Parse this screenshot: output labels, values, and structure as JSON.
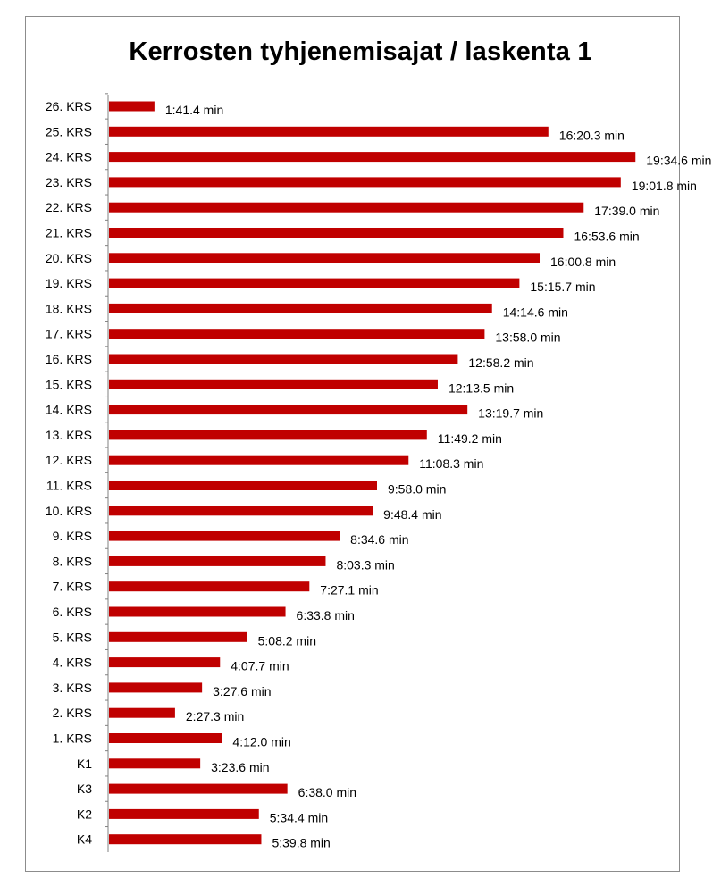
{
  "chart_data": {
    "type": "bar",
    "orientation": "horizontal",
    "title": "Kerrosten tyhjenemisajat / laskenta 1",
    "xlabel": "",
    "ylabel": "",
    "value_unit": "seconds",
    "xlim": [
      0,
      1200
    ],
    "grid": false,
    "legend": "none",
    "bar_color": "#c00000",
    "categories": [
      "26. KRS",
      "25. KRS",
      "24. KRS",
      "23. KRS",
      "22. KRS",
      "21. KRS",
      "20. KRS",
      "19. KRS",
      "18. KRS",
      "17. KRS",
      "16. KRS",
      "15. KRS",
      "14. KRS",
      "13. KRS",
      "12. KRS",
      "11. KRS",
      "10. KRS",
      "9. KRS",
      "8. KRS",
      "7. KRS",
      "6. KRS",
      "5. KRS",
      "4. KRS",
      "3. KRS",
      "2. KRS",
      "1. KRS",
      "K1",
      "K3",
      "K2",
      "K4"
    ],
    "values": [
      101.4,
      980.3,
      1174.6,
      1141.8,
      1059.0,
      1013.6,
      960.8,
      915.7,
      854.6,
      838.0,
      778.2,
      733.5,
      799.7,
      709.2,
      668.3,
      598.0,
      588.4,
      514.6,
      483.3,
      447.1,
      393.8,
      308.2,
      247.7,
      207.6,
      147.3,
      252.0,
      203.6,
      398.0,
      334.4,
      339.8
    ],
    "labels": [
      "1:41.4 min",
      "16:20.3 min",
      "19:34.6 min",
      "19:01.8 min",
      "17:39.0 min",
      "16:53.6 min",
      "16:00.8 min",
      "15:15.7 min",
      "14:14.6 min",
      "13:58.0 min",
      "12:58.2 min",
      "12:13.5 min",
      "13:19.7 min",
      "11:49.2 min",
      "11:08.3 min",
      "9:58.0 min",
      "9:48.4 min",
      "8:34.6 min",
      "8:03.3 min",
      "7:27.1 min",
      "6:33.8 min",
      "5:08.2 min",
      "4:07.7 min",
      "3:27.6 min",
      "2:27.3 min",
      "4:12.0 min",
      "3:23.6 min",
      "6:38.0 min",
      "5:34.4 min",
      "5:39.8 min"
    ]
  }
}
